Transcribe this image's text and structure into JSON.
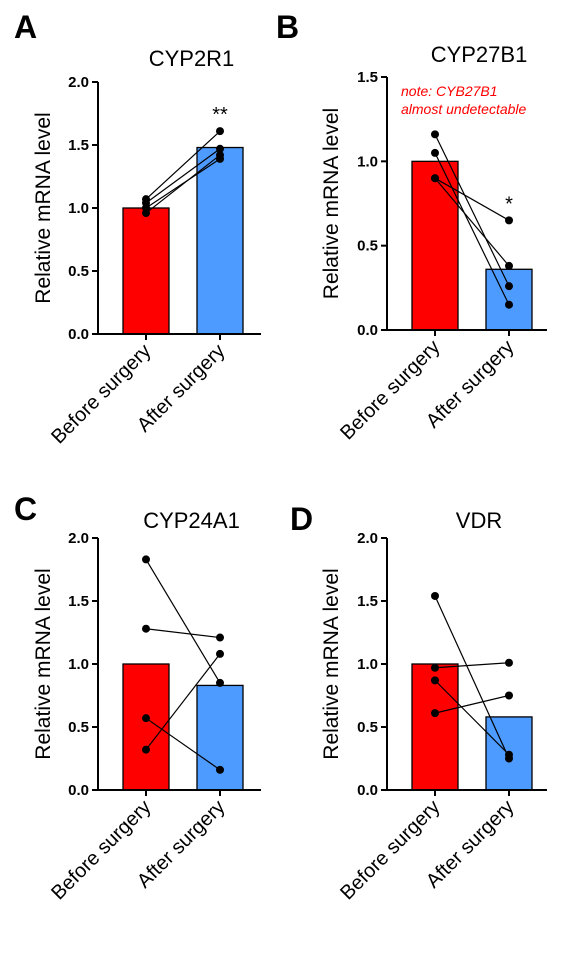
{
  "colors": {
    "before": "#ff0000",
    "after": "#4d9bff",
    "note": "#ff0000"
  },
  "chart_data": [
    {
      "panel": "A",
      "type": "bar",
      "title": "CYP2R1",
      "ylabel": "Relative mRNA level",
      "xlabel": "",
      "categories": [
        "Before surgery",
        "After surgery"
      ],
      "values": [
        1.0,
        1.48
      ],
      "ylim": [
        0,
        2.0
      ],
      "yticks": [
        "0.0",
        "0.5",
        "1.0",
        "1.5",
        "2.0"
      ],
      "paired": [
        [
          1.07,
          1.61
        ],
        [
          1.04,
          1.47
        ],
        [
          1.0,
          1.39
        ],
        [
          0.96,
          1.42
        ]
      ],
      "significance": "**",
      "note": []
    },
    {
      "panel": "B",
      "type": "bar",
      "title": "CYP27B1",
      "ylabel": "Relative mRNA level",
      "xlabel": "",
      "categories": [
        "Before surgery",
        "After surgery"
      ],
      "values": [
        1.0,
        0.36
      ],
      "ylim": [
        0,
        1.5
      ],
      "yticks": [
        "0.0",
        "0.5",
        "1.0",
        "1.5"
      ],
      "paired": [
        [
          1.16,
          0.26
        ],
        [
          1.05,
          0.15
        ],
        [
          0.9,
          0.38
        ],
        [
          0.9,
          0.65
        ]
      ],
      "significance": "*",
      "note": [
        "note: CYB27B1",
        "almost undetectable"
      ]
    },
    {
      "panel": "C",
      "type": "bar",
      "title": "CYP24A1",
      "ylabel": "Relative mRNA level",
      "xlabel": "",
      "categories": [
        "Before surgery",
        "After surgery"
      ],
      "values": [
        1.0,
        0.83
      ],
      "ylim": [
        0,
        2.0
      ],
      "yticks": [
        "0.0",
        "0.5",
        "1.0",
        "1.5",
        "2.0"
      ],
      "paired": [
        [
          1.83,
          0.85
        ],
        [
          1.28,
          1.21
        ],
        [
          0.57,
          0.16
        ],
        [
          0.32,
          1.08
        ]
      ],
      "significance": "",
      "note": []
    },
    {
      "panel": "D",
      "type": "bar",
      "title": "VDR",
      "ylabel": "Relative mRNA level",
      "xlabel": "",
      "categories": [
        "Before surgery",
        "After surgery"
      ],
      "values": [
        1.0,
        0.58
      ],
      "ylim": [
        0,
        2.0
      ],
      "yticks": [
        "0.0",
        "0.5",
        "1.0",
        "1.5",
        "2.0"
      ],
      "paired": [
        [
          1.54,
          0.25
        ],
        [
          0.97,
          1.01
        ],
        [
          0.87,
          0.28
        ],
        [
          0.61,
          0.75
        ]
      ],
      "significance": "",
      "note": []
    }
  ]
}
